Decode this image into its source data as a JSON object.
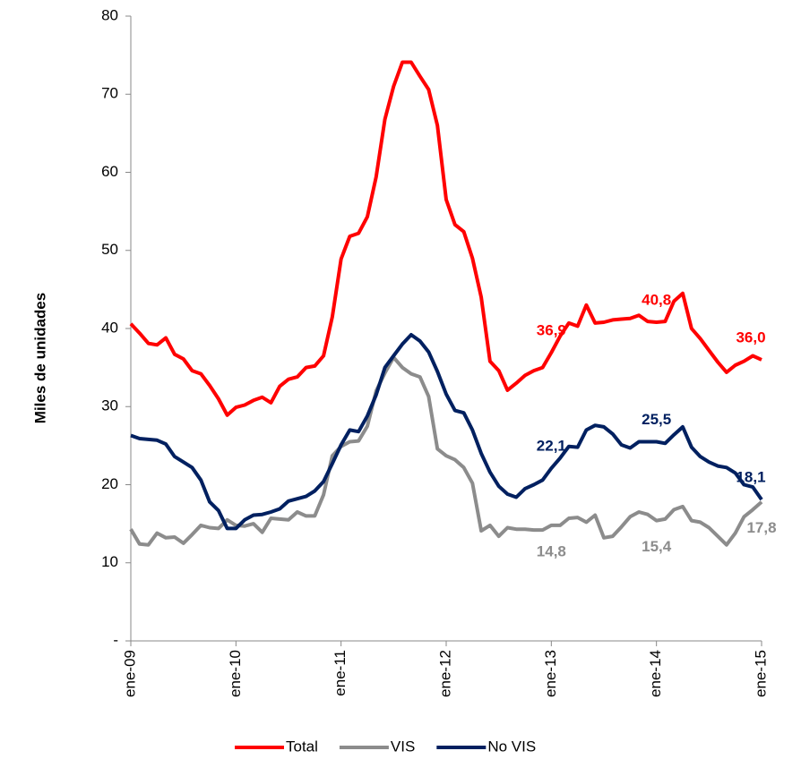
{
  "chart_data": {
    "type": "line",
    "y_label": "Miles de unidades",
    "categories": [
      "ene-09",
      null,
      null,
      null,
      null,
      null,
      null,
      null,
      null,
      null,
      null,
      null,
      "ene-10",
      null,
      null,
      null,
      null,
      null,
      null,
      null,
      null,
      null,
      null,
      null,
      "ene-11",
      null,
      null,
      null,
      null,
      null,
      null,
      null,
      null,
      null,
      null,
      null,
      "ene-12",
      null,
      null,
      null,
      null,
      null,
      null,
      null,
      null,
      null,
      null,
      null,
      "ene-13",
      null,
      null,
      null,
      null,
      null,
      null,
      null,
      null,
      null,
      null,
      null,
      "ene-14",
      null,
      null,
      null,
      null,
      null,
      null,
      null,
      null,
      null,
      null,
      null,
      "ene-15"
    ],
    "series": [
      {
        "name": "Total",
        "color": "#ff0000",
        "values": [
          40.6,
          39.4,
          38.1,
          37.9,
          38.8,
          36.7,
          36.1,
          34.6,
          34.2,
          32.7,
          31.0,
          28.9,
          29.9,
          30.2,
          30.8,
          31.2,
          30.5,
          32.6,
          33.5,
          33.8,
          35.0,
          35.2,
          36.5,
          41.5,
          48.9,
          51.8,
          52.2,
          54.3,
          59.4,
          66.8,
          71.0,
          74.1,
          74.1,
          72.3,
          70.6,
          66.0,
          56.5,
          53.3,
          52.4,
          49.0,
          44.0,
          35.8,
          34.6,
          32.1,
          33.0,
          34.0,
          34.6,
          35.0,
          36.9,
          39.0,
          40.7,
          40.3,
          43.0,
          40.7,
          40.8,
          41.1,
          41.2,
          41.3,
          41.7,
          40.9,
          40.8,
          40.9,
          43.5,
          44.5,
          40.0,
          38.7,
          37.2,
          35.7,
          34.4,
          35.3,
          35.8,
          36.5,
          36.0
        ],
        "value_labels": [
          null,
          null,
          null,
          null,
          null,
          null,
          null,
          null,
          null,
          null,
          null,
          null,
          null,
          null,
          null,
          null,
          null,
          null,
          null,
          null,
          null,
          null,
          null,
          null,
          null,
          null,
          null,
          null,
          null,
          null,
          null,
          null,
          null,
          null,
          null,
          null,
          null,
          null,
          null,
          null,
          null,
          null,
          null,
          null,
          null,
          null,
          null,
          null,
          "36,9",
          null,
          null,
          null,
          null,
          null,
          null,
          null,
          null,
          null,
          null,
          null,
          "40,8",
          null,
          null,
          null,
          null,
          null,
          null,
          null,
          null,
          null,
          null,
          null,
          "36,0"
        ]
      },
      {
        "name": "VIS",
        "color": "#8c8c8c",
        "values": [
          14.3,
          12.4,
          12.3,
          13.8,
          13.2,
          13.3,
          12.5,
          13.6,
          14.8,
          14.5,
          14.4,
          15.5,
          14.8,
          14.7,
          15.0,
          13.9,
          15.7,
          15.6,
          15.5,
          16.5,
          16.0,
          16.0,
          18.7,
          23.7,
          24.9,
          25.5,
          25.6,
          27.5,
          32.0,
          34.3,
          36.3,
          35.0,
          34.2,
          33.8,
          31.3,
          24.6,
          23.7,
          23.2,
          22.2,
          20.2,
          14.1,
          14.8,
          13.4,
          14.5,
          14.3,
          14.3,
          14.2,
          14.2,
          14.8,
          14.8,
          15.7,
          15.8,
          15.2,
          16.1,
          13.2,
          13.4,
          14.6,
          15.9,
          16.5,
          16.2,
          15.4,
          15.6,
          16.8,
          17.2,
          15.4,
          15.2,
          14.5,
          13.4,
          12.3,
          13.8,
          15.9,
          16.8,
          17.8
        ],
        "value_labels": [
          null,
          null,
          null,
          null,
          null,
          null,
          null,
          null,
          null,
          null,
          null,
          null,
          null,
          null,
          null,
          null,
          null,
          null,
          null,
          null,
          null,
          null,
          null,
          null,
          null,
          null,
          null,
          null,
          null,
          null,
          null,
          null,
          null,
          null,
          null,
          null,
          null,
          null,
          null,
          null,
          null,
          null,
          null,
          null,
          null,
          null,
          null,
          null,
          "14,8",
          null,
          null,
          null,
          null,
          null,
          null,
          null,
          null,
          null,
          null,
          null,
          "15,4",
          null,
          null,
          null,
          null,
          null,
          null,
          null,
          null,
          null,
          null,
          null,
          "17,8"
        ]
      },
      {
        "name": "No VIS",
        "color": "#002060",
        "values": [
          26.3,
          25.9,
          25.8,
          25.7,
          25.2,
          23.6,
          22.9,
          22.2,
          20.6,
          17.8,
          16.7,
          14.4,
          14.4,
          15.5,
          16.1,
          16.2,
          16.5,
          16.9,
          17.9,
          18.2,
          18.5,
          19.2,
          20.4,
          22.7,
          25.1,
          27.0,
          26.8,
          28.8,
          31.5,
          35.0,
          36.5,
          38.0,
          39.2,
          38.4,
          37.0,
          34.5,
          31.6,
          29.5,
          29.2,
          27.0,
          24.0,
          21.6,
          19.8,
          18.8,
          18.4,
          19.5,
          20.0,
          20.6,
          22.1,
          23.4,
          24.9,
          24.8,
          27.0,
          27.6,
          27.4,
          26.5,
          25.1,
          24.7,
          25.5,
          25.5,
          25.5,
          25.3,
          26.4,
          27.4,
          24.8,
          23.6,
          22.9,
          22.4,
          22.2,
          21.5,
          20.0,
          19.7,
          18.1
        ],
        "value_labels": [
          null,
          null,
          null,
          null,
          null,
          null,
          null,
          null,
          null,
          null,
          null,
          null,
          null,
          null,
          null,
          null,
          null,
          null,
          null,
          null,
          null,
          null,
          null,
          null,
          null,
          null,
          null,
          null,
          null,
          null,
          null,
          null,
          null,
          null,
          null,
          null,
          null,
          null,
          null,
          null,
          null,
          null,
          null,
          null,
          null,
          null,
          null,
          null,
          "22,1",
          null,
          null,
          null,
          null,
          null,
          null,
          null,
          null,
          null,
          null,
          null,
          "25,5",
          null,
          null,
          null,
          null,
          null,
          null,
          null,
          null,
          null,
          null,
          null,
          "18,1"
        ]
      }
    ],
    "ylim": [
      0,
      80
    ],
    "yticks": [
      {
        "value": 0,
        "label": "-"
      },
      10,
      20,
      30,
      40,
      50,
      60,
      70,
      80
    ],
    "legend": "bottom"
  }
}
